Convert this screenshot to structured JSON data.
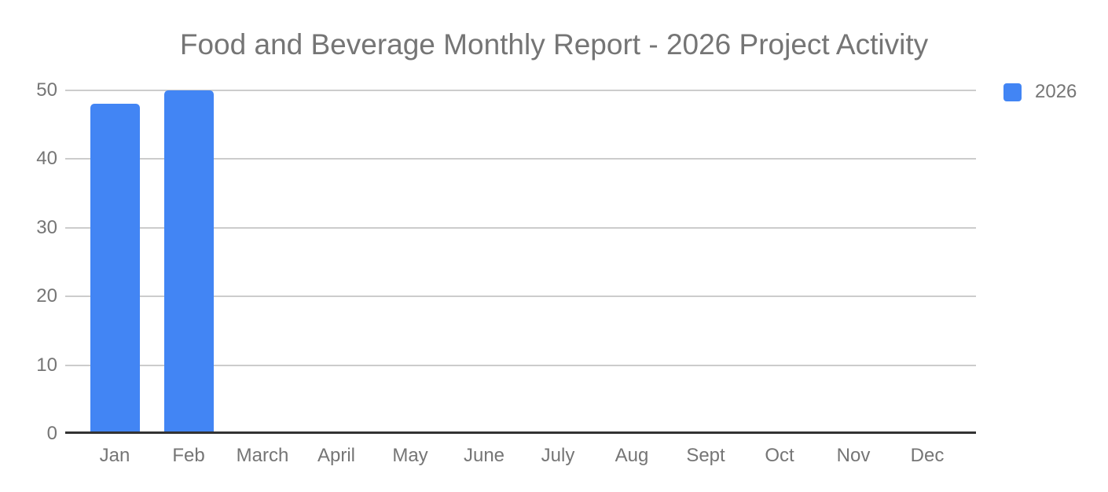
{
  "title": "Food and Beverage Monthly Report - 2026 Project Activity",
  "legend": {
    "label": "2026",
    "swatch_color": "#4285F4"
  },
  "chart_data": {
    "type": "bar",
    "title": "Food and Beverage Monthly Report - 2026 Project Activity",
    "categories": [
      "Jan",
      "Feb",
      "March",
      "April",
      "May",
      "June",
      "July",
      "Aug",
      "Sept",
      "Oct",
      "Nov",
      "Dec"
    ],
    "series": [
      {
        "name": "2026",
        "color": "#4285F4",
        "values": [
          48,
          50,
          0,
          0,
          0,
          0,
          0,
          0,
          0,
          0,
          0,
          0
        ]
      }
    ],
    "xlabel": "",
    "ylabel": "",
    "ylim": [
      0,
      50
    ],
    "yticks": [
      0,
      10,
      20,
      30,
      40,
      50
    ],
    "grid": true,
    "legend_position": "top-right",
    "colors": {
      "grid": "#cccccc",
      "baseline": "#333333",
      "text": "#757575",
      "background": "#ffffff"
    }
  }
}
